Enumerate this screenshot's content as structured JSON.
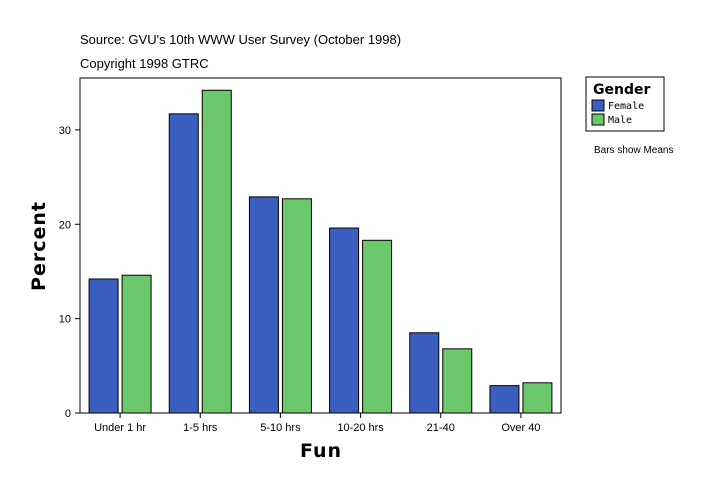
{
  "header": {
    "source": "Source: GVU's 10th WWW User Survey (October 1998)",
    "copyright": "Copyright 1998 GTRC"
  },
  "legend": {
    "title": "Gender",
    "note": "Bars show Means"
  },
  "chart_data": {
    "type": "bar",
    "xlabel": "Fun",
    "ylabel": "Percent",
    "ylim": [
      0,
      35.5
    ],
    "yticks": [
      0,
      10,
      20,
      30
    ],
    "grid": false,
    "legend_position": "right",
    "categories": [
      "Under 1 hr",
      "1-5 hrs",
      "5-10 hrs",
      "10-20 hrs",
      "21-40",
      "Over 40"
    ],
    "series": [
      {
        "name": "Female",
        "color": "#3a5fc0",
        "values": [
          14.2,
          31.7,
          22.9,
          19.6,
          8.5,
          2.9
        ]
      },
      {
        "name": "Male",
        "color": "#6cc86c",
        "values": [
          14.6,
          34.2,
          22.7,
          18.3,
          6.8,
          3.2
        ]
      }
    ]
  }
}
